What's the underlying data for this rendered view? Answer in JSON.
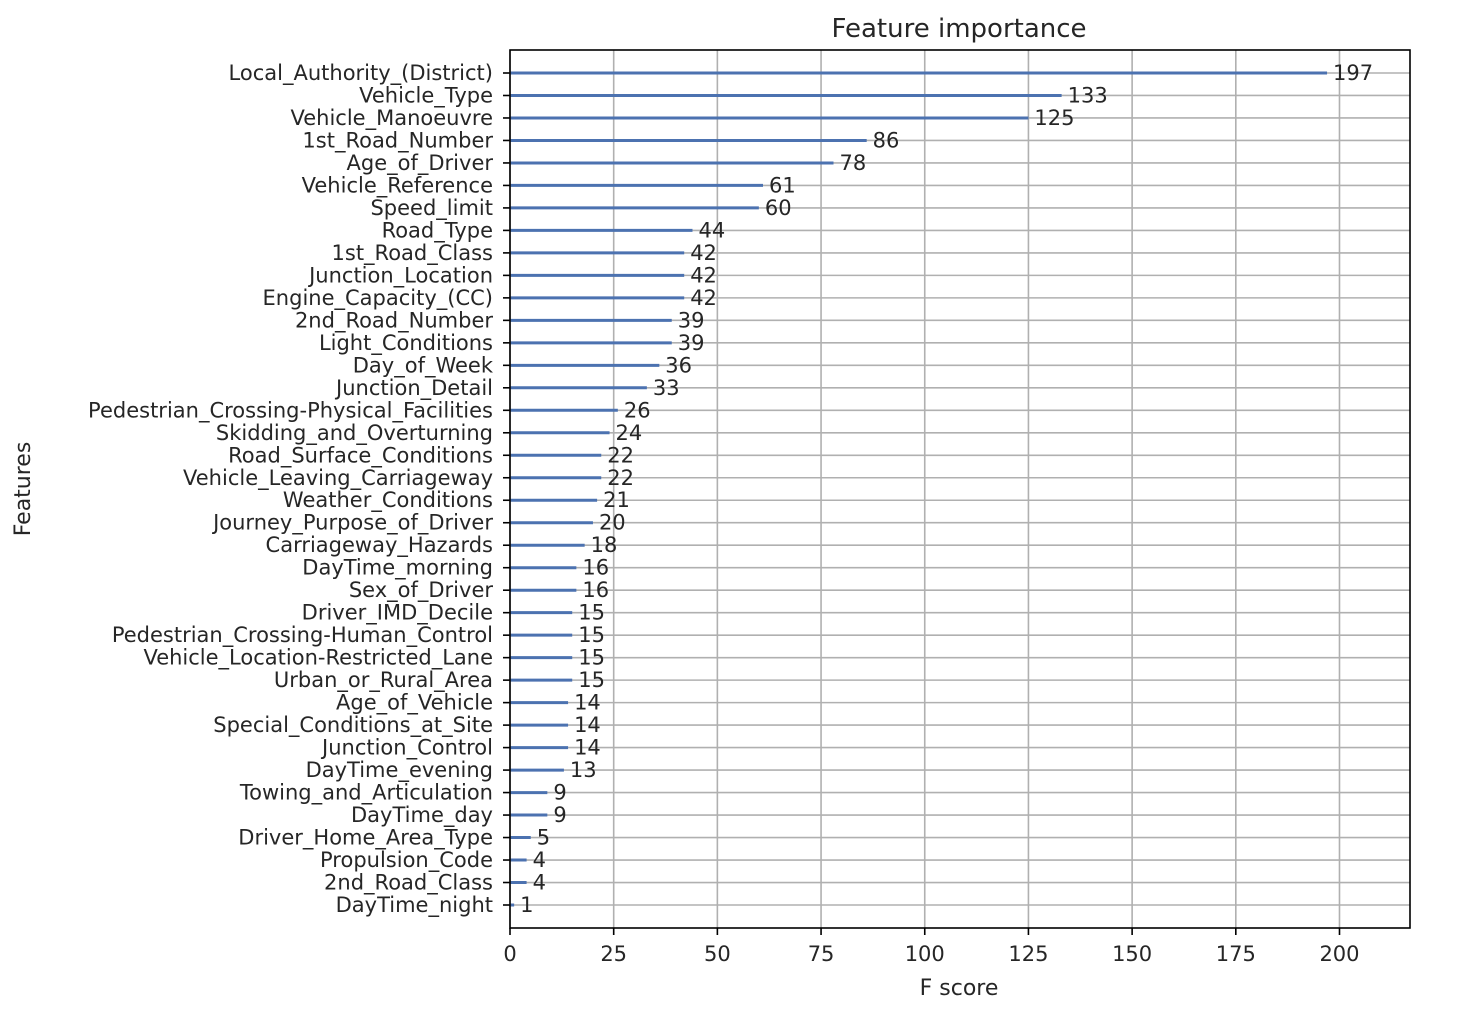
{
  "chart_data": {
    "type": "bar",
    "orientation": "horizontal",
    "title": "Feature importance",
    "xlabel": "F score",
    "ylabel": "Features",
    "xlim": [
      0,
      217
    ],
    "xticks": [
      0,
      25,
      50,
      75,
      100,
      125,
      150,
      175,
      200
    ],
    "grid": true,
    "bar_color": "#4c72b0",
    "categories": [
      "Local_Authority_(District)",
      "Vehicle_Type",
      "Vehicle_Manoeuvre",
      "1st_Road_Number",
      "Age_of_Driver",
      "Vehicle_Reference",
      "Speed_limit",
      "Road_Type",
      "1st_Road_Class",
      "Junction_Location",
      "Engine_Capacity_(CC)",
      "2nd_Road_Number",
      "Light_Conditions",
      "Day_of_Week",
      "Junction_Detail",
      "Pedestrian_Crossing-Physical_Facilities",
      "Skidding_and_Overturning",
      "Road_Surface_Conditions",
      "Vehicle_Leaving_Carriageway",
      "Weather_Conditions",
      "Journey_Purpose_of_Driver",
      "Carriageway_Hazards",
      "DayTime_morning",
      "Sex_of_Driver",
      "Driver_IMD_Decile",
      "Pedestrian_Crossing-Human_Control",
      "Vehicle_Location-Restricted_Lane",
      "Urban_or_Rural_Area",
      "Age_of_Vehicle",
      "Special_Conditions_at_Site",
      "Junction_Control",
      "DayTime_evening",
      "Towing_and_Articulation",
      "DayTime_day",
      "Driver_Home_Area_Type",
      "Propulsion_Code",
      "2nd_Road_Class",
      "DayTime_night"
    ],
    "values": [
      197,
      133,
      125,
      86,
      78,
      61,
      60,
      44,
      42,
      42,
      42,
      39,
      39,
      36,
      33,
      26,
      24,
      22,
      22,
      21,
      20,
      18,
      16,
      16,
      15,
      15,
      15,
      15,
      14,
      14,
      14,
      13,
      9,
      9,
      5,
      4,
      4,
      1
    ]
  }
}
